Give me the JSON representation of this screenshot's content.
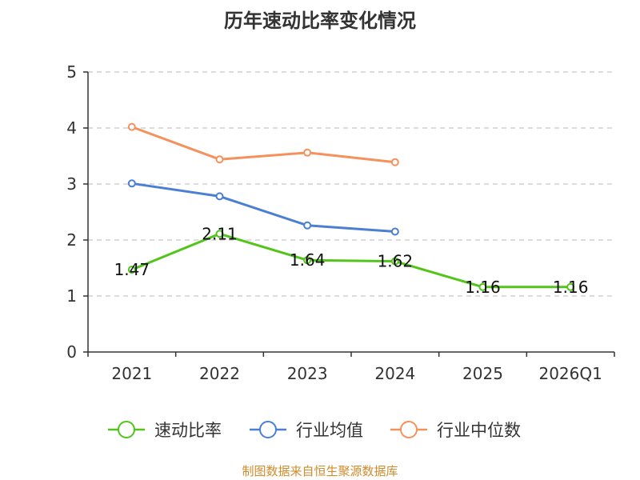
{
  "title": "历年速动比率变化情况",
  "source": "制图数据来自恒生聚源数据库",
  "chart_data": {
    "type": "line",
    "title": "历年速动比率变化情况",
    "categories": [
      "2021",
      "2022",
      "2023",
      "2024",
      "2025",
      "2026Q1"
    ],
    "ylim": [
      0,
      5
    ],
    "yticks": [
      0,
      1,
      2,
      3,
      4,
      5
    ],
    "grid": true,
    "legend_position": "bottom",
    "series": [
      {
        "name": "速动比率",
        "color": "#52c41a",
        "values": [
          1.47,
          2.11,
          1.64,
          1.62,
          1.16,
          1.16
        ],
        "labels": [
          "1.47",
          "2.11",
          "1.64",
          "1.62",
          "1.16",
          "1.16"
        ]
      },
      {
        "name": "行业均值",
        "color": "#4a7fd4",
        "values": [
          3.01,
          2.78,
          2.26,
          2.15,
          null,
          null
        ]
      },
      {
        "name": "行业中位数",
        "color": "#f5915c",
        "values": [
          4.02,
          3.44,
          3.56,
          3.39,
          null,
          null
        ]
      }
    ]
  }
}
